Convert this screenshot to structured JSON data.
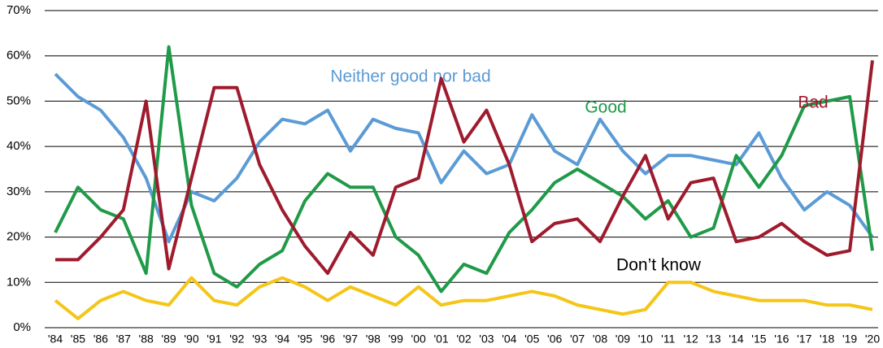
{
  "chart_data": {
    "type": "line",
    "categories": [
      "'84",
      "'85",
      "'86",
      "'87",
      "'88",
      "'89",
      "'90",
      "'91",
      "'92",
      "'93",
      "'94",
      "'95",
      "'96",
      "'97",
      "'98",
      "'99",
      "'00",
      "'01",
      "'02",
      "'03",
      "'04",
      "'05",
      "'06",
      "'07",
      "'08",
      "'09",
      "'10",
      "'11",
      "'12",
      "'13",
      "'14",
      "'15",
      "'16",
      "'17",
      "'18",
      "'19",
      "'20"
    ],
    "series": [
      {
        "name": "Neither good nor bad",
        "color": "#5b9bd5",
        "values": [
          56,
          51,
          48,
          42,
          33,
          19,
          30,
          28,
          33,
          41,
          46,
          45,
          48,
          39,
          46,
          44,
          43,
          32,
          39,
          34,
          36,
          47,
          39,
          36,
          46,
          39,
          34,
          38,
          38,
          37,
          36,
          43,
          33,
          26,
          30,
          27,
          20
        ]
      },
      {
        "name": "Good",
        "color": "#1f9a48",
        "values": [
          21,
          31,
          26,
          24,
          12,
          62,
          27,
          12,
          9,
          14,
          17,
          28,
          34,
          31,
          31,
          20,
          16,
          8,
          14,
          12,
          21,
          26,
          32,
          35,
          32,
          29,
          24,
          28,
          20,
          22,
          38,
          31,
          38,
          49,
          50,
          51,
          17
        ]
      },
      {
        "name": "Bad",
        "color": "#9e1b2e",
        "values": [
          15,
          15,
          20,
          26,
          50,
          13,
          33,
          53,
          53,
          36,
          26,
          18,
          12,
          21,
          16,
          31,
          33,
          55,
          41,
          48,
          36,
          19,
          23,
          24,
          19,
          29,
          38,
          24,
          32,
          33,
          19,
          20,
          23,
          19,
          16,
          17,
          59
        ]
      },
      {
        "name": "Don’t know",
        "color": "#f5c518",
        "values": [
          6,
          2,
          6,
          8,
          6,
          5,
          11,
          6,
          5,
          9,
          11,
          9,
          6,
          9,
          7,
          5,
          9,
          5,
          6,
          6,
          7,
          8,
          7,
          5,
          4,
          3,
          4,
          10,
          10,
          8,
          7,
          6,
          6,
          6,
          5,
          5,
          4
        ]
      }
    ],
    "ylim": [
      0,
      70
    ],
    "yticks": [
      {
        "value": 0,
        "label": "0%"
      },
      {
        "value": 10,
        "label": "10%"
      },
      {
        "value": 20,
        "label": "20%"
      },
      {
        "value": 30,
        "label": "30%"
      },
      {
        "value": 40,
        "label": "40%"
      },
      {
        "value": 50,
        "label": "50%"
      },
      {
        "value": 60,
        "label": "60%"
      },
      {
        "value": 70,
        "label": "70%"
      }
    ],
    "grid": true
  }
}
